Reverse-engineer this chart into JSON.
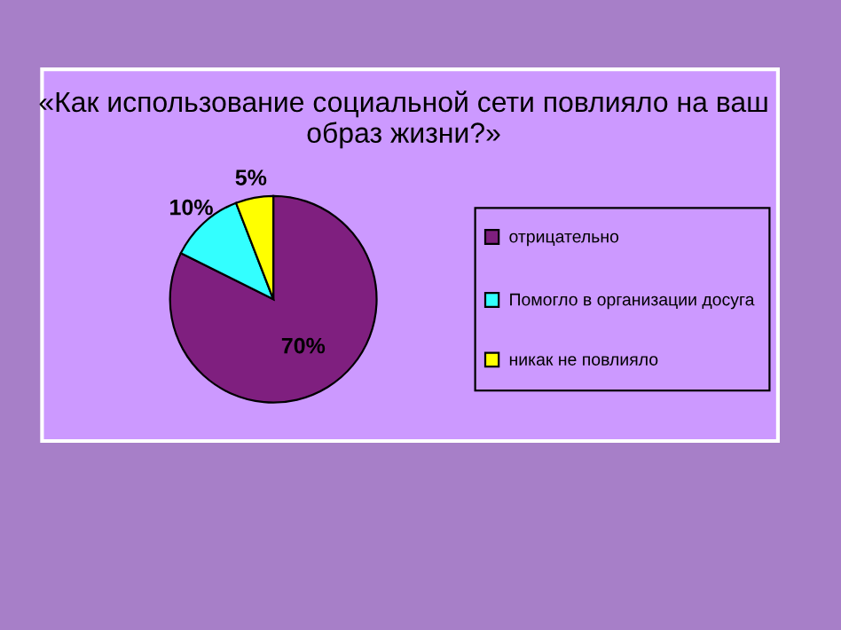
{
  "chart_data": {
    "type": "pie",
    "title": "«Как использование социальной сети повлияло на ваш образ жизни?»",
    "categories": [
      "отрицательно",
      "Помогло в организации досуга",
      "никак не повлияло"
    ],
    "values": [
      70,
      10,
      5
    ],
    "value_labels": [
      "70%",
      "10%",
      "5%"
    ],
    "colors": [
      "#7f1f7f",
      "#33ffff",
      "#ffff00"
    ],
    "legend": "right"
  }
}
